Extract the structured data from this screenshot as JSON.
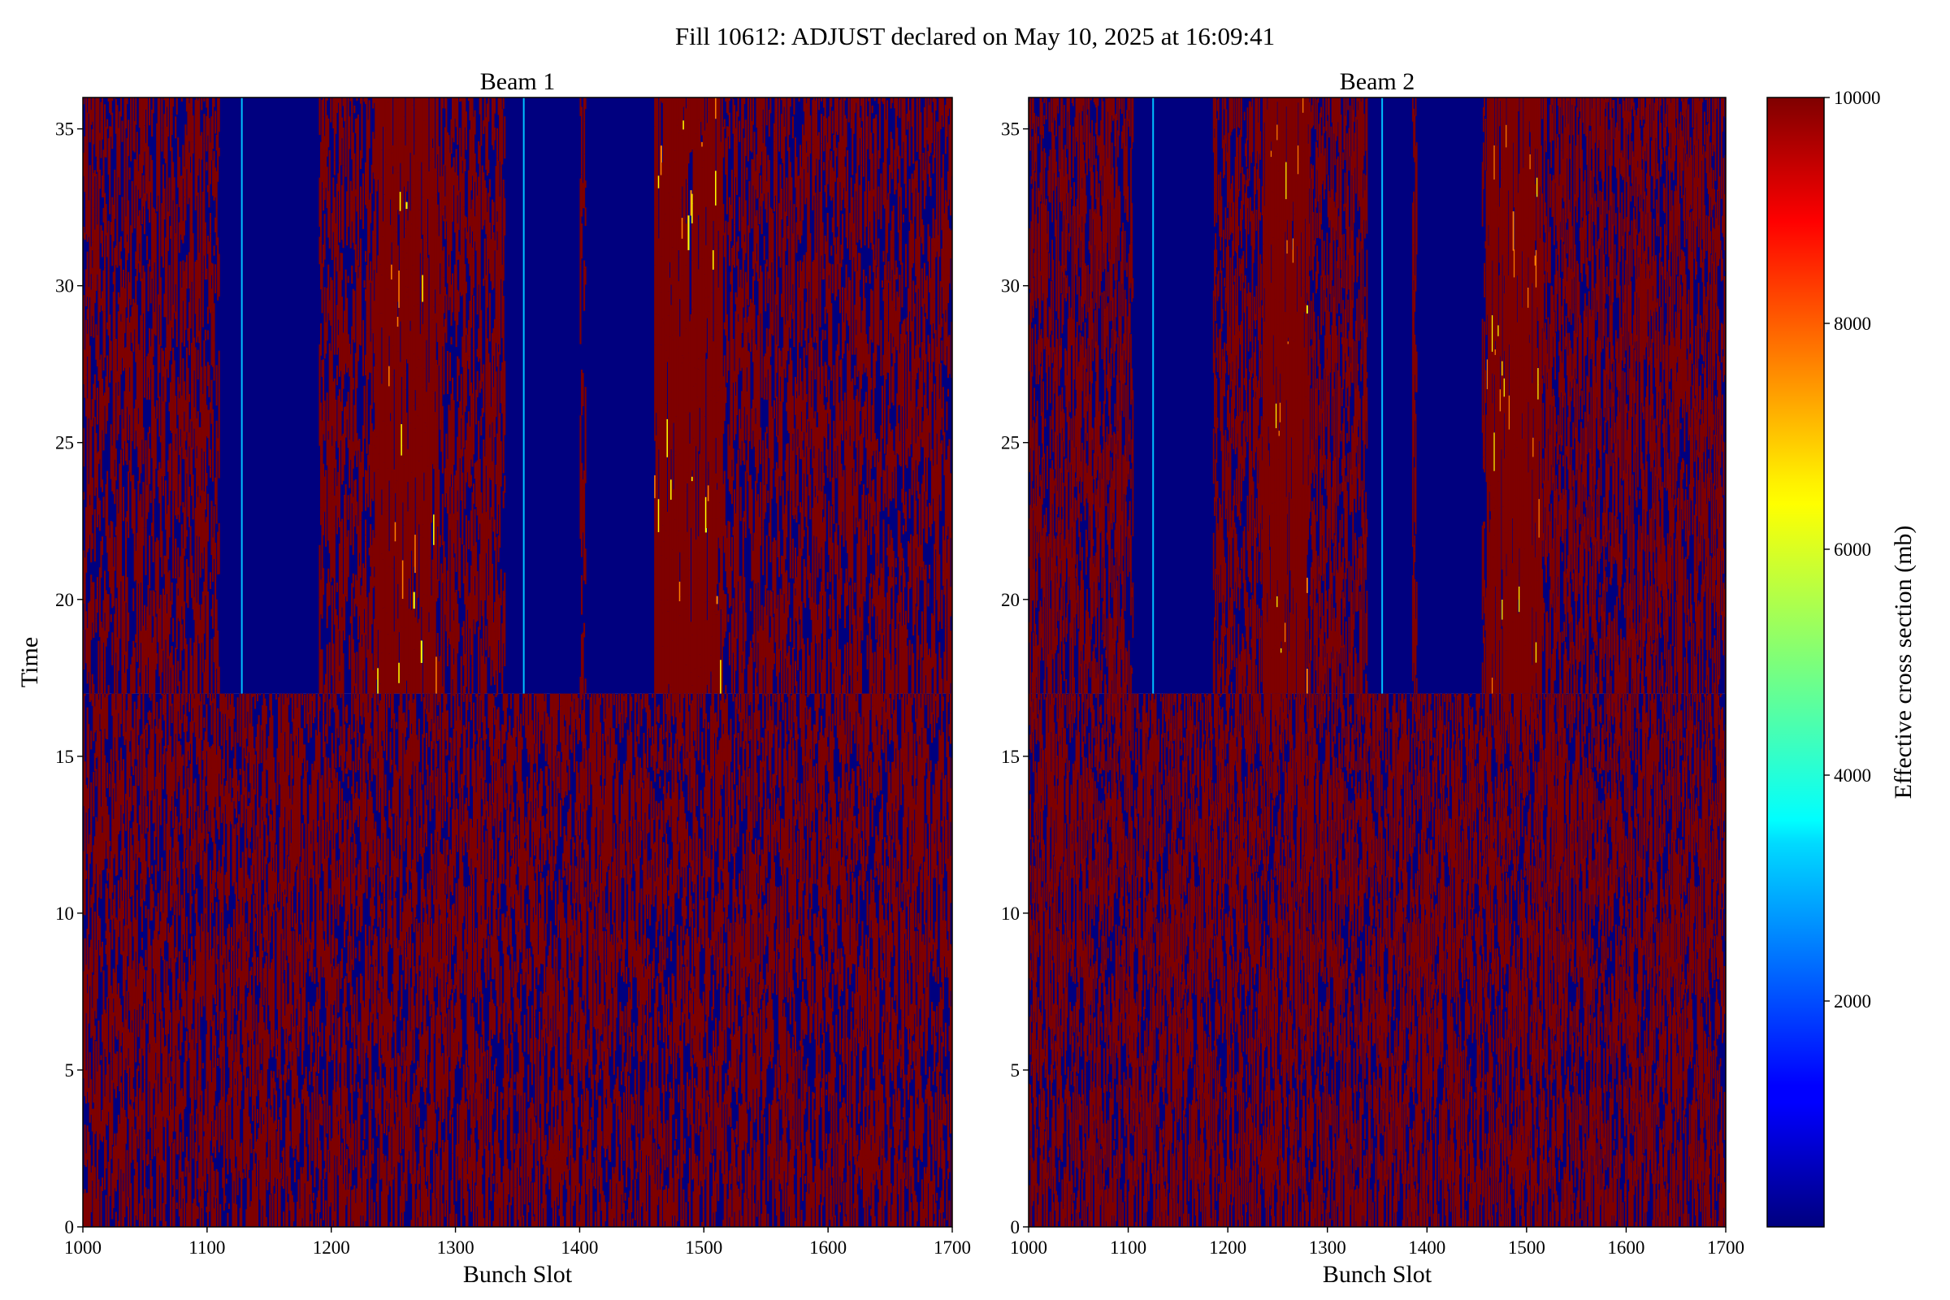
{
  "figure": {
    "title": "Fill 10612: ADJUST declared on May 10, 2025 at 16:09:41"
  },
  "chart_data": [
    {
      "type": "heatmap",
      "title": "Beam 1",
      "xlabel": "Bunch Slot",
      "ylabel": "Time",
      "xlim": [
        1000,
        1700
      ],
      "ylim": [
        0,
        36
      ],
      "xticks": [
        "1000",
        "1100",
        "1200",
        "1300",
        "1400",
        "1500",
        "1600",
        "1700"
      ],
      "yticks": [
        "0",
        "5",
        "10",
        "15",
        "20",
        "25",
        "30",
        "35"
      ],
      "transition_time": 17,
      "low_bands_after_transition": [
        [
          1110,
          1150
        ],
        [
          1150,
          1190
        ],
        [
          1340,
          1400
        ],
        [
          1405,
          1460
        ]
      ],
      "high_bands_after_transition": [
        [
          1235,
          1285
        ],
        [
          1455,
          1515
        ]
      ],
      "thin_lines": [
        1128,
        1355
      ]
    },
    {
      "type": "heatmap",
      "title": "Beam 2",
      "xlabel": "Bunch Slot",
      "ylabel": "Time",
      "xlim": [
        1000,
        1700
      ],
      "ylim": [
        0,
        36
      ],
      "xticks": [
        "1000",
        "1100",
        "1200",
        "1300",
        "1400",
        "1500",
        "1600",
        "1700"
      ],
      "yticks": [
        "0",
        "5",
        "10",
        "15",
        "20",
        "25",
        "30",
        "35"
      ],
      "transition_time": 17,
      "low_bands_after_transition": [
        [
          1105,
          1145
        ],
        [
          1145,
          1185
        ],
        [
          1340,
          1385
        ],
        [
          1390,
          1455
        ]
      ],
      "high_bands_after_transition": [
        [
          1235,
          1280
        ],
        [
          1460,
          1515
        ]
      ],
      "thin_lines": [
        1125,
        1355
      ]
    }
  ],
  "colorbar": {
    "label": "Effective cross section (mb)",
    "range": [
      0,
      10000
    ],
    "ticks": [
      "2000",
      "4000",
      "6000",
      "8000",
      "10000"
    ],
    "colormap": "jet",
    "low_color": "#00007f",
    "high_color": "#7f0000"
  }
}
